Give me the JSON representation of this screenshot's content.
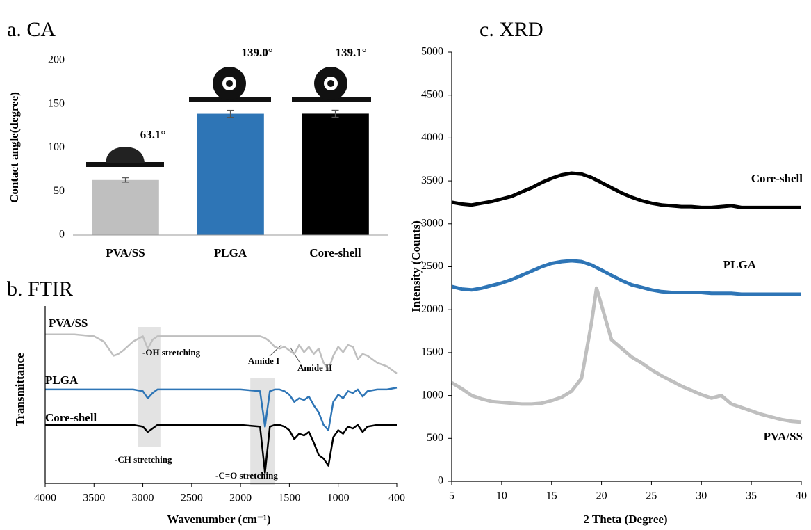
{
  "chart_data": [
    {
      "type": "bar",
      "title": "a. CA",
      "y_label": "Contact angle(degree)",
      "categories": [
        "PVA/SS",
        "PLGA",
        "Core-shell"
      ],
      "values": [
        63.1,
        139.0,
        139.1
      ],
      "value_labels": [
        "63.1°",
        "139.0°",
        "139.1°"
      ],
      "errors": [
        2.5,
        4,
        4
      ],
      "colors": [
        "#bfbfbf",
        "#2e75b6",
        "#000000"
      ],
      "ylim": [
        0,
        200
      ],
      "yticks": [
        0,
        50,
        100,
        150,
        200
      ]
    },
    {
      "type": "line",
      "title": "b. FTIR",
      "x_label": "Wavenumber (cm⁻¹)",
      "y_label": "Transmittance",
      "x": [
        4000,
        3700,
        3500,
        3400,
        3300,
        3250,
        3200,
        3100,
        3000,
        2950,
        2900,
        2850,
        2700,
        2500,
        2200,
        2000,
        1800,
        1750,
        1700,
        1650,
        1600,
        1550,
        1500,
        1450,
        1400,
        1350,
        1300,
        1250,
        1200,
        1150,
        1100,
        1050,
        1000,
        950,
        900,
        850,
        800,
        750,
        700,
        600,
        500,
        400
      ],
      "series": [
        {
          "name": "PVA/SS",
          "color": "#bfbfbf",
          "values": [
            84,
            84,
            83,
            80,
            72,
            73,
            75,
            80,
            83,
            76,
            81,
            83,
            83,
            83,
            83,
            83,
            83,
            82,
            80,
            77,
            76,
            77,
            75,
            73,
            78,
            74,
            77,
            73,
            76,
            68,
            64,
            72,
            77,
            74,
            78,
            77,
            70,
            73,
            72,
            68,
            66,
            62
          ]
        },
        {
          "name": "PLGA",
          "color": "#2e75b6",
          "values": [
            53,
            53,
            53,
            53,
            53,
            53,
            53,
            53,
            52,
            48,
            51,
            53,
            53,
            53,
            53,
            53,
            52,
            32,
            52,
            53,
            53,
            52,
            50,
            46,
            48,
            47,
            49,
            44,
            40,
            33,
            30,
            46,
            50,
            48,
            52,
            51,
            53,
            49,
            52,
            53,
            53,
            54
          ]
        },
        {
          "name": "Core-shell",
          "color": "#000000",
          "values": [
            33,
            33,
            33,
            33,
            33,
            33,
            33,
            33,
            32,
            29,
            31,
            33,
            33,
            33,
            33,
            33,
            32,
            6,
            32,
            33,
            33,
            32,
            30,
            25,
            28,
            27,
            29,
            23,
            16,
            14,
            10,
            26,
            30,
            28,
            32,
            31,
            33,
            29,
            32,
            33,
            33,
            33
          ]
        }
      ],
      "xlim": [
        4000,
        400
      ],
      "xticks": [
        4000,
        3500,
        3000,
        2500,
        2000,
        1500,
        1000,
        400
      ],
      "ylim": [
        0,
        100
      ],
      "highlights": [
        [
          3050,
          2820
        ],
        [
          1900,
          1650
        ]
      ],
      "annotations": [
        "-OH stretching",
        "Amide I",
        "Amide II",
        "-CH stretching",
        "-C=O stretching"
      ]
    },
    {
      "type": "line",
      "title": "c. XRD",
      "x_label": "2 Theta (Degree)",
      "y_label": "Intensity (Counts)",
      "x": [
        5,
        6,
        7,
        8,
        9,
        10,
        11,
        12,
        13,
        14,
        15,
        16,
        17,
        18,
        19,
        19.5,
        20,
        21,
        22,
        23,
        24,
        25,
        26,
        27,
        28,
        29,
        30,
        31,
        32,
        33,
        34,
        35,
        36,
        37,
        38,
        39,
        40
      ],
      "series": [
        {
          "name": "Core-shell",
          "color": "#000000",
          "values": [
            3250,
            3230,
            3220,
            3240,
            3260,
            3290,
            3320,
            3370,
            3420,
            3480,
            3530,
            3570,
            3590,
            3580,
            3540,
            3510,
            3480,
            3420,
            3360,
            3310,
            3270,
            3240,
            3220,
            3210,
            3200,
            3200,
            3190,
            3190,
            3200,
            3210,
            3190,
            3190,
            3190,
            3190,
            3190,
            3190,
            3190
          ]
        },
        {
          "name": "PLGA",
          "color": "#2e75b6",
          "values": [
            2270,
            2240,
            2230,
            2250,
            2280,
            2310,
            2350,
            2400,
            2450,
            2500,
            2540,
            2560,
            2570,
            2560,
            2520,
            2490,
            2460,
            2400,
            2340,
            2290,
            2260,
            2230,
            2210,
            2200,
            2200,
            2200,
            2200,
            2190,
            2190,
            2190,
            2180,
            2180,
            2180,
            2180,
            2180,
            2180,
            2180
          ]
        },
        {
          "name": "PVA/SS",
          "color": "#bfbfbf",
          "values": [
            1150,
            1080,
            1000,
            960,
            930,
            920,
            910,
            900,
            900,
            910,
            940,
            980,
            1050,
            1200,
            1850,
            2250,
            2050,
            1650,
            1550,
            1450,
            1380,
            1300,
            1230,
            1170,
            1110,
            1060,
            1010,
            970,
            1000,
            900,
            860,
            820,
            780,
            750,
            720,
            700,
            690
          ]
        }
      ],
      "xlim": [
        5,
        40
      ],
      "xticks": [
        5,
        10,
        15,
        20,
        25,
        30,
        35,
        40
      ],
      "ylim": [
        0,
        5000
      ],
      "yticks": [
        0,
        500,
        1000,
        1500,
        2000,
        2500,
        3000,
        3500,
        4000,
        4500,
        5000
      ]
    }
  ]
}
